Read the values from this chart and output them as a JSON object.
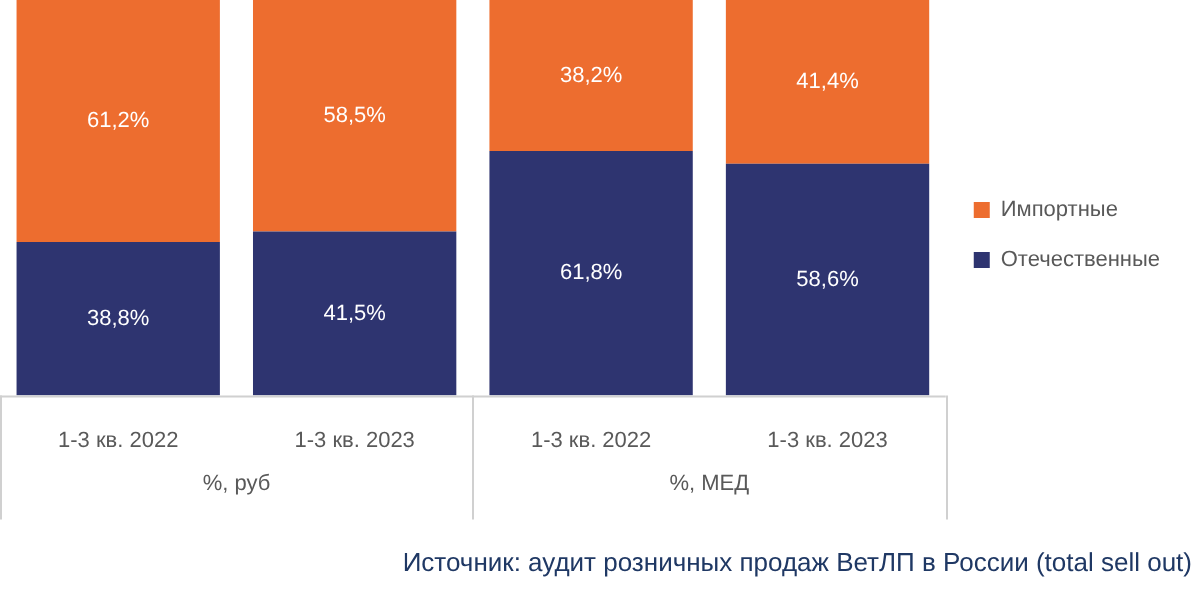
{
  "chart_data": {
    "type": "bar",
    "stacked": true,
    "categories": [
      "1-3 кв. 2022",
      "1-3 кв. 2023",
      "1-3 кв. 2022",
      "1-3 кв. 2023"
    ],
    "series": [
      {
        "name": "Отечественные",
        "color": "#2e3470",
        "values": [
          38.8,
          41.5,
          61.8,
          58.6
        ],
        "value_labels": [
          "38,8%",
          "41,5%",
          "61,8%",
          "58,6%"
        ]
      },
      {
        "name": "Импортные",
        "color": "#ed6d2f",
        "values": [
          61.2,
          58.5,
          38.2,
          41.4
        ],
        "value_labels": [
          "61,2%",
          "58,5%",
          "38,2%",
          "41,4%"
        ]
      }
    ],
    "ylim": [
      0,
      100
    ],
    "tick_labels": "x",
    "grid": false,
    "legend": "right",
    "annotations": [
      "%, руб",
      "%, МЕД",
      "Источник: аудит розничных продаж ВетЛП в России (total sell out)"
    ]
  }
}
